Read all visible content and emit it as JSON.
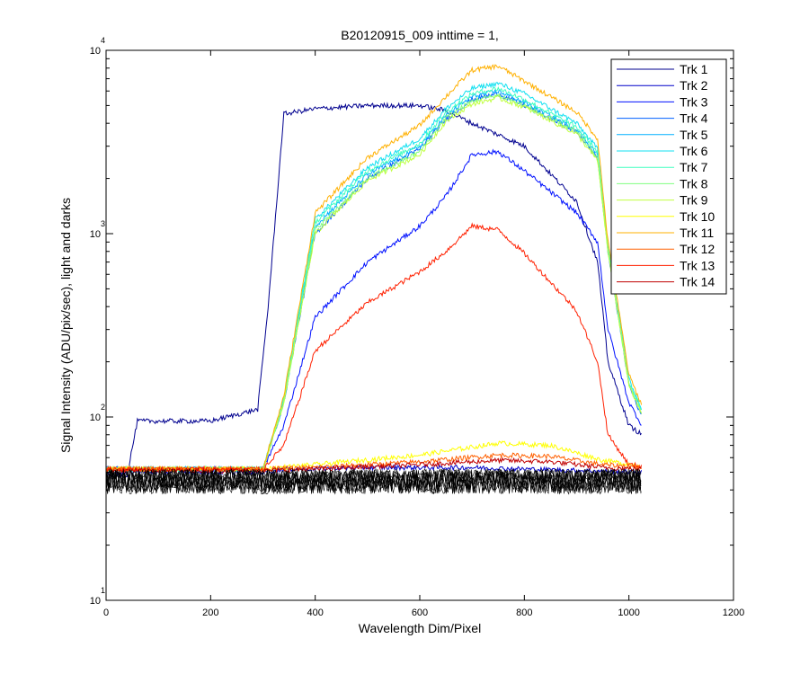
{
  "chart_data": {
    "type": "line",
    "title": "B20120915_009 inttime = 1,",
    "xlabel": "Wavelength Dim/Pixel",
    "ylabel": "Signal Intensity (ADU/pix/sec), light and darks",
    "xlim": [
      0,
      1200
    ],
    "ylim": [
      10,
      10000
    ],
    "yscale": "log",
    "grid": false,
    "legend_position": "top-right",
    "xticks": [
      "0",
      "200",
      "400",
      "600",
      "800",
      "1000",
      "1200"
    ],
    "yticks": [
      {
        "base": "10",
        "exp": "1",
        "value": 10
      },
      {
        "base": "10",
        "exp": "2",
        "value": 100
      },
      {
        "base": "10",
        "exp": "3",
        "value": 1000
      },
      {
        "base": "10",
        "exp": "4",
        "value": 10000
      }
    ],
    "series": [
      {
        "name": "Trk 1",
        "color": "#00008f",
        "values": [
          [
            0,
            48
          ],
          [
            40,
            48
          ],
          [
            60,
            95
          ],
          [
            100,
            95
          ],
          [
            200,
            95
          ],
          [
            290,
            110
          ],
          [
            310,
            400
          ],
          [
            340,
            4500
          ],
          [
            400,
            4800
          ],
          [
            500,
            5000
          ],
          [
            600,
            5000
          ],
          [
            650,
            4700
          ],
          [
            700,
            4000
          ],
          [
            800,
            3000
          ],
          [
            900,
            1500
          ],
          [
            940,
            700
          ],
          [
            960,
            200
          ],
          [
            1000,
            90
          ],
          [
            1025,
            80
          ]
        ]
      },
      {
        "name": "Trk 2",
        "color": "#0000c8",
        "values": [
          [
            0,
            50
          ],
          [
            300,
            50
          ],
          [
            340,
            52
          ],
          [
            500,
            53
          ],
          [
            700,
            53
          ],
          [
            800,
            52
          ],
          [
            1025,
            50
          ]
        ]
      },
      {
        "name": "Trk 3",
        "color": "#0010ff",
        "values": [
          [
            0,
            52
          ],
          [
            300,
            52
          ],
          [
            340,
            90
          ],
          [
            400,
            350
          ],
          [
            500,
            700
          ],
          [
            600,
            1100
          ],
          [
            650,
            1600
          ],
          [
            700,
            2700
          ],
          [
            750,
            2800
          ],
          [
            800,
            2200
          ],
          [
            900,
            1300
          ],
          [
            940,
            900
          ],
          [
            960,
            300
          ],
          [
            1000,
            120
          ],
          [
            1025,
            90
          ]
        ]
      },
      {
        "name": "Trk 4",
        "color": "#0060ff",
        "values": [
          [
            0,
            52
          ],
          [
            300,
            52
          ],
          [
            340,
            120
          ],
          [
            400,
            1000
          ],
          [
            500,
            2000
          ],
          [
            600,
            2900
          ],
          [
            650,
            4200
          ],
          [
            700,
            5400
          ],
          [
            750,
            5800
          ],
          [
            800,
            5000
          ],
          [
            900,
            3600
          ],
          [
            940,
            2600
          ],
          [
            960,
            800
          ],
          [
            1000,
            150
          ],
          [
            1025,
            100
          ]
        ]
      },
      {
        "name": "Trk 5",
        "color": "#00b0ff",
        "values": [
          [
            0,
            52
          ],
          [
            300,
            52
          ],
          [
            340,
            120
          ],
          [
            400,
            1100
          ],
          [
            500,
            2100
          ],
          [
            600,
            3000
          ],
          [
            650,
            4400
          ],
          [
            700,
            5600
          ],
          [
            750,
            6000
          ],
          [
            800,
            5200
          ],
          [
            900,
            3700
          ],
          [
            940,
            2700
          ],
          [
            960,
            820
          ],
          [
            1000,
            155
          ],
          [
            1025,
            105
          ]
        ]
      },
      {
        "name": "Trk 6",
        "color": "#10e0f0",
        "values": [
          [
            0,
            52
          ],
          [
            300,
            52
          ],
          [
            340,
            125
          ],
          [
            400,
            1200
          ],
          [
            500,
            2300
          ],
          [
            600,
            3300
          ],
          [
            650,
            4800
          ],
          [
            700,
            6200
          ],
          [
            750,
            6600
          ],
          [
            800,
            5800
          ],
          [
            900,
            4000
          ],
          [
            940,
            2900
          ],
          [
            960,
            850
          ],
          [
            1000,
            160
          ],
          [
            1025,
            110
          ]
        ]
      },
      {
        "name": "Trk 7",
        "color": "#40ffc0",
        "values": [
          [
            0,
            52
          ],
          [
            300,
            52
          ],
          [
            340,
            125
          ],
          [
            400,
            1150
          ],
          [
            500,
            2200
          ],
          [
            600,
            3100
          ],
          [
            650,
            4600
          ],
          [
            700,
            5800
          ],
          [
            750,
            6200
          ],
          [
            800,
            5400
          ],
          [
            900,
            3800
          ],
          [
            940,
            2800
          ],
          [
            960,
            830
          ],
          [
            1000,
            155
          ],
          [
            1025,
            108
          ]
        ]
      },
      {
        "name": "Trk 8",
        "color": "#80ff80",
        "values": [
          [
            0,
            52
          ],
          [
            300,
            52
          ],
          [
            340,
            120
          ],
          [
            400,
            1050
          ],
          [
            500,
            2000
          ],
          [
            600,
            2800
          ],
          [
            650,
            4300
          ],
          [
            700,
            5300
          ],
          [
            750,
            5700
          ],
          [
            800,
            5000
          ],
          [
            900,
            3600
          ],
          [
            940,
            2600
          ],
          [
            960,
            810
          ],
          [
            1000,
            150
          ],
          [
            1025,
            104
          ]
        ]
      },
      {
        "name": "Trk 9",
        "color": "#c0ff40",
        "values": [
          [
            0,
            52
          ],
          [
            300,
            52
          ],
          [
            340,
            120
          ],
          [
            400,
            1000
          ],
          [
            500,
            1950
          ],
          [
            600,
            2700
          ],
          [
            650,
            4100
          ],
          [
            700,
            5100
          ],
          [
            750,
            5500
          ],
          [
            800,
            4900
          ],
          [
            900,
            3500
          ],
          [
            940,
            2500
          ],
          [
            960,
            800
          ],
          [
            1000,
            150
          ],
          [
            1025,
            102
          ]
        ]
      },
      {
        "name": "Trk 10",
        "color": "#ffff00",
        "values": [
          [
            0,
            52
          ],
          [
            300,
            52
          ],
          [
            400,
            55
          ],
          [
            600,
            62
          ],
          [
            750,
            72
          ],
          [
            850,
            70
          ],
          [
            950,
            58
          ],
          [
            1025,
            54
          ]
        ]
      },
      {
        "name": "Trk 11",
        "color": "#ffb000",
        "values": [
          [
            0,
            52
          ],
          [
            300,
            52
          ],
          [
            340,
            130
          ],
          [
            400,
            1300
          ],
          [
            500,
            2600
          ],
          [
            600,
            3900
          ],
          [
            650,
            5600
          ],
          [
            700,
            7800
          ],
          [
            750,
            8200
          ],
          [
            800,
            6800
          ],
          [
            900,
            4600
          ],
          [
            940,
            3300
          ],
          [
            960,
            900
          ],
          [
            1000,
            170
          ],
          [
            1025,
            115
          ]
        ]
      },
      {
        "name": "Trk 12",
        "color": "#ff6000",
        "values": [
          [
            0,
            52
          ],
          [
            300,
            52
          ],
          [
            400,
            53
          ],
          [
            600,
            57
          ],
          [
            750,
            62
          ],
          [
            850,
            61
          ],
          [
            950,
            55
          ],
          [
            1025,
            53
          ]
        ]
      },
      {
        "name": "Trk 13",
        "color": "#ff2000",
        "values": [
          [
            0,
            52
          ],
          [
            300,
            52
          ],
          [
            340,
            70
          ],
          [
            400,
            230
          ],
          [
            500,
            420
          ],
          [
            600,
            620
          ],
          [
            650,
            800
          ],
          [
            700,
            1100
          ],
          [
            750,
            1050
          ],
          [
            800,
            780
          ],
          [
            900,
            380
          ],
          [
            940,
            200
          ],
          [
            960,
            80
          ],
          [
            1000,
            55
          ],
          [
            1025,
            54
          ]
        ]
      },
      {
        "name": "Trk 14",
        "color": "#c00000",
        "values": [
          [
            0,
            51
          ],
          [
            300,
            51
          ],
          [
            400,
            52
          ],
          [
            600,
            55
          ],
          [
            750,
            58
          ],
          [
            850,
            57
          ],
          [
            950,
            53
          ],
          [
            1025,
            52
          ]
        ]
      }
    ]
  }
}
